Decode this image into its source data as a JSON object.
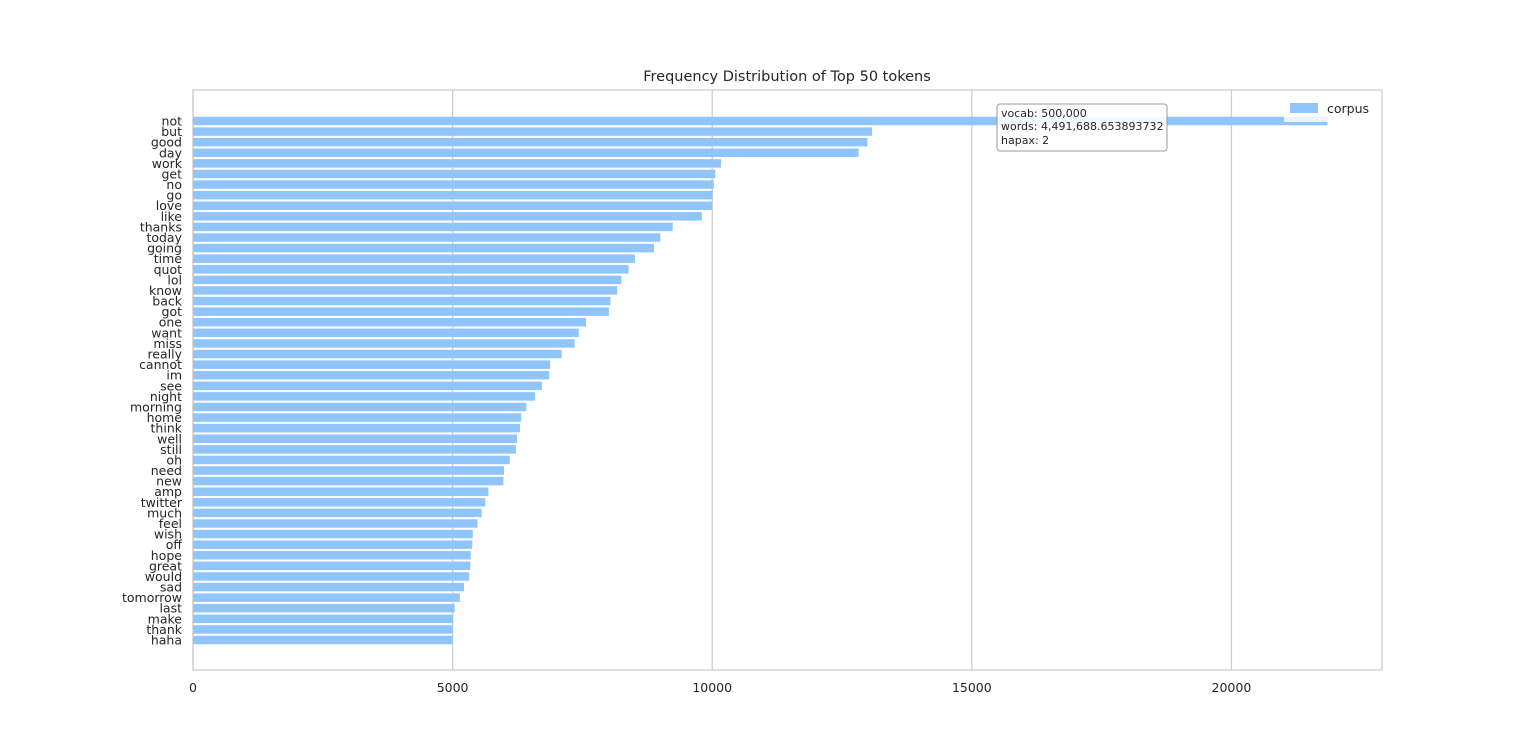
{
  "chart_data": {
    "type": "bar",
    "orientation": "horizontal",
    "title": "Frequency Distribution of Top 50 tokens",
    "xlabel": "",
    "ylabel": "",
    "xlim": [
      0,
      22900
    ],
    "xticks": [
      0,
      5000,
      10000,
      15000,
      20000
    ],
    "grid": true,
    "legend": {
      "position": "top-right",
      "entries": [
        "corpus"
      ]
    },
    "bar_color": "#90c5fb",
    "annotation": [
      "vocab: 500,000",
      "words: 4,491,688.653893732",
      "hapax: 2"
    ],
    "categories": [
      "not",
      "but",
      "good",
      "day",
      "work",
      "get",
      "no",
      "go",
      "love",
      "like",
      "thanks",
      "today",
      "going",
      "time",
      "quot",
      "lol",
      "know",
      "back",
      "got",
      "one",
      "want",
      "miss",
      "really",
      "cannot",
      "im",
      "see",
      "night",
      "morning",
      "home",
      "think",
      "well",
      "still",
      "oh",
      "need",
      "new",
      "amp",
      "twitter",
      "much",
      "feel",
      "wish",
      "off",
      "hope",
      "great",
      "would",
      "sad",
      "tomorrow",
      "last",
      "make",
      "thank",
      "haha"
    ],
    "series": [
      {
        "name": "corpus",
        "values": [
          21850,
          13080,
          12990,
          12820,
          10170,
          10060,
          10030,
          10010,
          10000,
          9800,
          9240,
          9000,
          8880,
          8510,
          8390,
          8250,
          8170,
          8040,
          8010,
          7570,
          7430,
          7350,
          7100,
          6880,
          6860,
          6720,
          6590,
          6420,
          6320,
          6300,
          6240,
          6220,
          6100,
          5990,
          5980,
          5690,
          5630,
          5560,
          5480,
          5390,
          5380,
          5350,
          5340,
          5320,
          5220,
          5140,
          5040,
          5010,
          5000,
          5000
        ]
      }
    ]
  }
}
